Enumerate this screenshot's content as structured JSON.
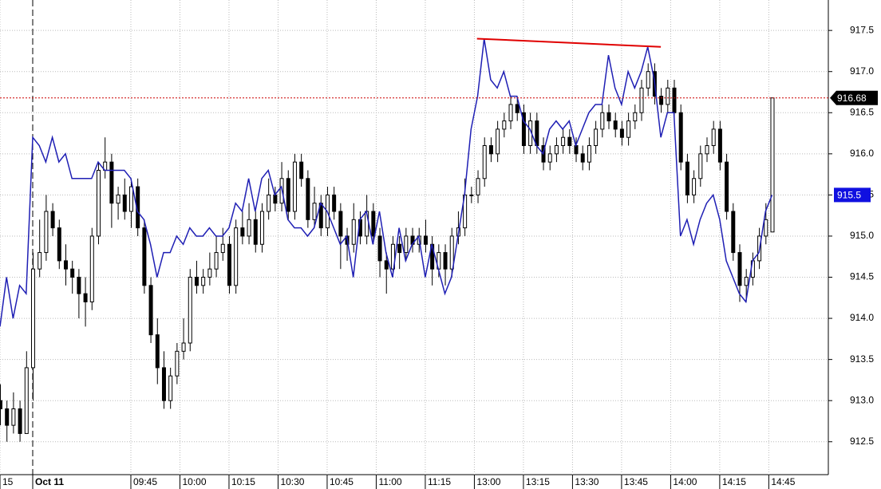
{
  "chart_data": {
    "type": "candlestick",
    "ylim": [
      912.1,
      917.87
    ],
    "yticks": [
      {
        "value": 912.5,
        "label": "912.5"
      },
      {
        "value": 913,
        "label": "913.0"
      },
      {
        "value": 913.5,
        "label": "913.5"
      },
      {
        "value": 914,
        "label": "914.0"
      },
      {
        "value": 914.5,
        "label": "914.5"
      },
      {
        "value": 915,
        "label": "915.0"
      },
      {
        "value": 915.5,
        "label": "915.5"
      },
      {
        "value": 916,
        "label": "916.0"
      },
      {
        "value": 916.5,
        "label": "916.5"
      },
      {
        "value": 917,
        "label": "917.0"
      },
      {
        "value": 917.5,
        "label": "917.5"
      }
    ],
    "xlim": [
      0,
      126.6
    ],
    "xticks": [
      {
        "value": 0,
        "label": "15"
      },
      {
        "value": 5,
        "label": "Oct 11"
      },
      {
        "value": 20,
        "label": "09:45"
      },
      {
        "value": 27.5,
        "label": "10:00"
      },
      {
        "value": 35,
        "label": "10:15"
      },
      {
        "value": 42.5,
        "label": "10:30"
      },
      {
        "value": 50,
        "label": "10:45"
      },
      {
        "value": 57.5,
        "label": "11:00"
      },
      {
        "value": 65,
        "label": "11:15"
      },
      {
        "value": 72.5,
        "label": "13:00"
      },
      {
        "value": 80,
        "label": "13:15"
      },
      {
        "value": 87.5,
        "label": "13:30"
      },
      {
        "value": 95,
        "label": "13:45"
      },
      {
        "value": 102.5,
        "label": "14:00"
      },
      {
        "value": 110,
        "label": "14:15"
      },
      {
        "value": 117.5,
        "label": "14:45"
      }
    ],
    "grid": true,
    "up_color": "#ffffff",
    "down_color": "#000000",
    "ohlc": [
      [
        913.0,
        913.2,
        912.7,
        912.9
      ],
      [
        912.9,
        913.0,
        912.5,
        912.7
      ],
      [
        912.7,
        913.1,
        912.6,
        912.9
      ],
      [
        912.9,
        913.0,
        912.5,
        912.6
      ],
      [
        912.6,
        913.6,
        912.6,
        913.4
      ],
      [
        913.4,
        914.8,
        913.0,
        914.6
      ],
      [
        914.6,
        915.2,
        914.5,
        914.8
      ],
      [
        914.8,
        915.5,
        914.7,
        915.3
      ],
      [
        915.3,
        915.4,
        915.0,
        915.1
      ],
      [
        915.1,
        915.2,
        914.6,
        914.7
      ],
      [
        914.7,
        914.9,
        914.4,
        914.6
      ],
      [
        914.6,
        914.7,
        914.3,
        914.5
      ],
      [
        914.5,
        914.6,
        914.0,
        914.3
      ],
      [
        914.3,
        914.5,
        913.9,
        914.2
      ],
      [
        914.2,
        915.1,
        914.1,
        915.0
      ],
      [
        915.0,
        915.9,
        914.9,
        915.8
      ],
      [
        915.8,
        916.2,
        915.7,
        915.9
      ],
      [
        915.9,
        916.0,
        915.1,
        915.4
      ],
      [
        915.4,
        915.6,
        915.2,
        915.5
      ],
      [
        915.5,
        915.7,
        915.2,
        915.3
      ],
      [
        915.3,
        915.7,
        915.1,
        915.6
      ],
      [
        915.6,
        915.7,
        915.0,
        915.1
      ],
      [
        915.1,
        915.2,
        914.3,
        914.4
      ],
      [
        914.4,
        914.5,
        913.7,
        913.8
      ],
      [
        913.8,
        914.0,
        913.2,
        913.4
      ],
      [
        913.4,
        913.6,
        912.9,
        913.0
      ],
      [
        913.0,
        913.4,
        912.9,
        913.3
      ],
      [
        913.3,
        913.7,
        913.2,
        913.6
      ],
      [
        913.6,
        914.0,
        913.5,
        913.7
      ],
      [
        913.7,
        914.6,
        913.6,
        914.5
      ],
      [
        914.5,
        914.7,
        914.3,
        914.4
      ],
      [
        914.4,
        914.6,
        914.3,
        914.5
      ],
      [
        914.5,
        914.8,
        914.4,
        914.6
      ],
      [
        914.6,
        915.0,
        914.5,
        914.8
      ],
      [
        914.8,
        915.1,
        914.7,
        914.9
      ],
      [
        914.9,
        915.0,
        914.3,
        914.4
      ],
      [
        914.4,
        915.2,
        914.3,
        915.1
      ],
      [
        915.1,
        915.3,
        914.9,
        915.0
      ],
      [
        915.0,
        915.4,
        914.9,
        915.2
      ],
      [
        915.2,
        915.3,
        914.8,
        914.9
      ],
      [
        914.9,
        915.4,
        914.8,
        915.3
      ],
      [
        915.3,
        915.7,
        915.2,
        915.5
      ],
      [
        915.5,
        915.6,
        915.3,
        915.4
      ],
      [
        915.4,
        915.9,
        915.3,
        915.7
      ],
      [
        915.7,
        915.8,
        915.2,
        915.3
      ],
      [
        915.3,
        916.0,
        915.2,
        915.9
      ],
      [
        915.9,
        916.0,
        915.6,
        915.7
      ],
      [
        915.7,
        915.8,
        915.1,
        915.2
      ],
      [
        915.2,
        915.6,
        915.1,
        915.4
      ],
      [
        915.4,
        915.5,
        915.0,
        915.1
      ],
      [
        915.1,
        915.6,
        915.0,
        915.5
      ],
      [
        915.5,
        915.6,
        915.2,
        915.3
      ],
      [
        915.3,
        915.4,
        914.6,
        915.0
      ],
      [
        915.0,
        915.1,
        914.7,
        914.9
      ],
      [
        914.9,
        915.4,
        914.8,
        915.2
      ],
      [
        915.2,
        915.3,
        914.9,
        915.0
      ],
      [
        915.0,
        915.5,
        914.9,
        915.3
      ],
      [
        915.3,
        915.4,
        914.9,
        915.0
      ],
      [
        915.0,
        915.1,
        914.5,
        914.7
      ],
      [
        914.7,
        914.8,
        914.3,
        914.6
      ],
      [
        914.6,
        915.0,
        914.5,
        914.9
      ],
      [
        914.9,
        915.0,
        914.6,
        914.8
      ],
      [
        914.8,
        915.1,
        914.7,
        915.0
      ],
      [
        915.0,
        915.1,
        914.8,
        914.9
      ],
      [
        914.9,
        915.1,
        914.8,
        915.0
      ],
      [
        915.0,
        915.2,
        914.8,
        914.9
      ],
      [
        914.9,
        915.0,
        914.4,
        914.6
      ],
      [
        914.6,
        914.9,
        914.5,
        914.8
      ],
      [
        914.8,
        914.9,
        914.4,
        914.6
      ],
      [
        914.6,
        915.1,
        914.5,
        915.0
      ],
      [
        915.0,
        915.3,
        914.9,
        915.1
      ],
      [
        915.1,
        915.7,
        915.0,
        915.5
      ],
      [
        915.5,
        915.6,
        915.4,
        915.5
      ],
      [
        915.5,
        915.8,
        915.4,
        915.7
      ],
      [
        915.7,
        916.2,
        915.6,
        916.1
      ],
      [
        916.1,
        916.2,
        915.9,
        916.0
      ],
      [
        916.0,
        916.4,
        915.9,
        916.3
      ],
      [
        916.3,
        916.5,
        916.2,
        916.4
      ],
      [
        916.4,
        916.7,
        916.3,
        916.6
      ],
      [
        916.6,
        916.7,
        916.4,
        916.5
      ],
      [
        916.5,
        916.6,
        916.0,
        916.1
      ],
      [
        916.1,
        916.5,
        916.0,
        916.4
      ],
      [
        916.4,
        916.5,
        916.0,
        916.1
      ],
      [
        916.1,
        916.2,
        915.8,
        915.9
      ],
      [
        915.9,
        916.1,
        915.8,
        916.0
      ],
      [
        916.0,
        916.2,
        915.9,
        916.1
      ],
      [
        916.1,
        916.3,
        916.0,
        916.2
      ],
      [
        916.2,
        916.3,
        916.0,
        916.1
      ],
      [
        916.1,
        916.2,
        915.9,
        916.0
      ],
      [
        916.0,
        916.1,
        915.8,
        915.9
      ],
      [
        915.9,
        916.2,
        915.8,
        916.1
      ],
      [
        916.1,
        916.4,
        916.0,
        916.3
      ],
      [
        916.3,
        916.6,
        916.2,
        916.5
      ],
      [
        916.5,
        916.6,
        916.3,
        916.4
      ],
      [
        916.4,
        916.5,
        916.2,
        916.3
      ],
      [
        916.3,
        916.4,
        916.1,
        916.2
      ],
      [
        916.2,
        916.5,
        916.1,
        916.4
      ],
      [
        916.4,
        916.6,
        916.3,
        916.5
      ],
      [
        916.5,
        916.9,
        916.4,
        916.8
      ],
      [
        916.8,
        917.1,
        916.7,
        917.0
      ],
      [
        917.0,
        917.1,
        916.6,
        916.7
      ],
      [
        916.7,
        916.8,
        916.5,
        916.6
      ],
      [
        916.6,
        916.9,
        916.5,
        916.8
      ],
      [
        916.8,
        916.9,
        916.4,
        916.5
      ],
      [
        916.5,
        916.6,
        915.8,
        915.9
      ],
      [
        915.9,
        916.0,
        915.4,
        915.5
      ],
      [
        915.5,
        915.8,
        915.4,
        915.7
      ],
      [
        915.7,
        916.1,
        915.6,
        916.0
      ],
      [
        916.0,
        916.2,
        915.9,
        916.1
      ],
      [
        916.1,
        916.4,
        916.0,
        916.3
      ],
      [
        916.3,
        916.4,
        915.8,
        915.9
      ],
      [
        915.9,
        916.0,
        915.2,
        915.3
      ],
      [
        915.3,
        915.4,
        914.7,
        914.8
      ],
      [
        914.8,
        914.9,
        914.2,
        914.4
      ],
      [
        914.4,
        914.6,
        914.2,
        914.5
      ],
      [
        914.5,
        914.8,
        914.4,
        914.7
      ],
      [
        914.7,
        915.1,
        914.6,
        915.0
      ],
      [
        915.0,
        915.4,
        914.9,
        915.2
      ],
      [
        915.05,
        916.68,
        915.05,
        916.68
      ]
    ],
    "line": {
      "color": "#1f1fb4",
      "tag_color": "#1010e0",
      "values": [
        913.9,
        914.5,
        914.0,
        914.4,
        914.3,
        916.2,
        916.1,
        915.9,
        916.2,
        915.9,
        916.0,
        915.7,
        915.7,
        915.7,
        915.7,
        915.9,
        915.8,
        915.8,
        915.8,
        915.8,
        915.7,
        915.3,
        915.2,
        914.9,
        914.5,
        914.8,
        914.8,
        915.0,
        914.9,
        915.1,
        915.0,
        915.0,
        915.1,
        915.0,
        915.0,
        915.1,
        915.4,
        915.3,
        915.7,
        915.3,
        915.7,
        915.8,
        915.5,
        915.6,
        915.2,
        915.1,
        915.1,
        915.0,
        915.1,
        915.4,
        915.3,
        915.1,
        914.9,
        915.0,
        914.5,
        915.2,
        915.3,
        914.9,
        915.3,
        914.8,
        914.5,
        915.1,
        914.7,
        914.9,
        915.0,
        914.5,
        914.9,
        914.6,
        914.3,
        914.5,
        915.0,
        915.5,
        916.3,
        916.7,
        917.4,
        916.9,
        916.8,
        917.0,
        916.7,
        916.7,
        916.4,
        916.3,
        916.1,
        916.0,
        916.3,
        916.4,
        916.3,
        916.4,
        916.1,
        916.3,
        916.5,
        916.6,
        916.6,
        917.2,
        916.8,
        916.6,
        917.0,
        916.8,
        917.0,
        917.3,
        916.9,
        916.2,
        916.5,
        916.5,
        915.0,
        915.2,
        914.9,
        915.2,
        915.4,
        915.5,
        915.2,
        914.7,
        914.5,
        914.3,
        914.2,
        914.7,
        914.8,
        915.3,
        915.5
      ]
    },
    "trendline": {
      "x": [
        72.9,
        101
      ],
      "y": [
        917.4,
        917.3
      ],
      "color": "#e00000"
    },
    "last_price_color": "#cc0000"
  }
}
